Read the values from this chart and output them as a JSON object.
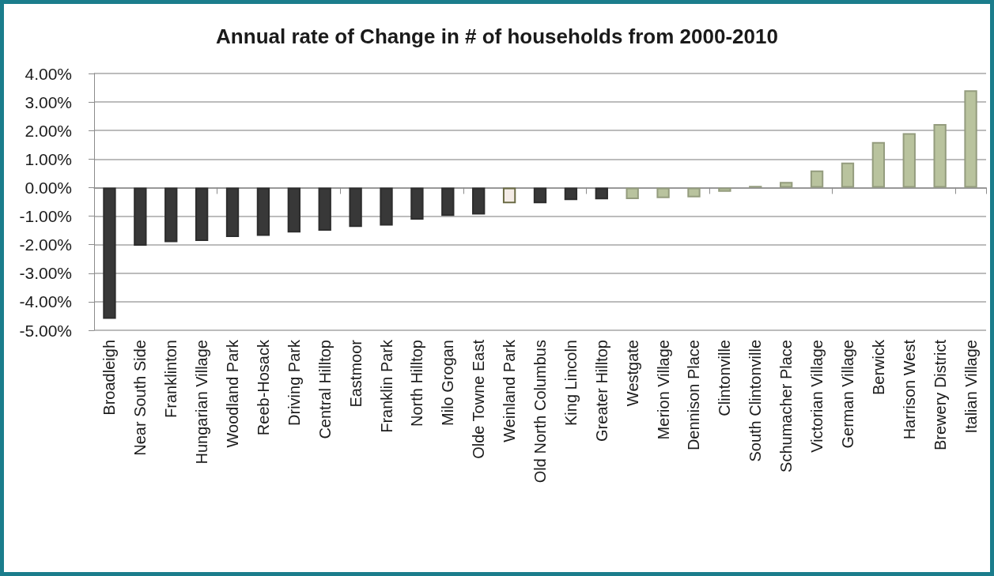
{
  "chart_data": {
    "type": "bar",
    "title": "Annual rate of Change in # of households from 2000-2010",
    "categories": [
      "Broadleigh",
      "Near South Side",
      "Franklinton",
      "Hungarian Village",
      "Woodland Park",
      "Reeb-Hosack",
      "Driving Park",
      "Central Hilltop",
      "Eastmoor",
      "Franklin Park",
      "North Hilltop",
      "Milo Grogan",
      "Olde Towne East",
      "Weinland Park",
      "Old North Columbus",
      "King Lincoln",
      "Greater Hilltop",
      "Westgate",
      "Merion Village",
      "Dennison Place",
      "Clintonville",
      "South Clintonville",
      "Schumacher Place",
      "Victorian Village",
      "German Village",
      "Berwick",
      "Harrison West",
      "Brewery District",
      "Italian Village"
    ],
    "values": [
      -4.6,
      -2.04,
      -1.91,
      -1.87,
      -1.73,
      -1.69,
      -1.57,
      -1.51,
      -1.38,
      -1.33,
      -1.12,
      -0.99,
      -0.94,
      -0.55,
      -0.55,
      -0.44,
      -0.41,
      -0.4,
      -0.37,
      -0.34,
      -0.15,
      0.06,
      0.2,
      0.6,
      0.88,
      1.6,
      1.91,
      2.23,
      3.41
    ],
    "colors": [
      "#383838",
      "#383838",
      "#383838",
      "#383838",
      "#383838",
      "#383838",
      "#383838",
      "#383838",
      "#383838",
      "#383838",
      "#383838",
      "#383838",
      "#383838",
      "#f4ece6",
      "#383838",
      "#383838",
      "#383838",
      "#b9c39e",
      "#b9c39e",
      "#b9c39e",
      "#b9c39e",
      "#b9c39e",
      "#b9c39e",
      "#b9c39e",
      "#b9c39e",
      "#b9c39e",
      "#b9c39e",
      "#b9c39e",
      "#b9c39e"
    ],
    "ylim": [
      -5,
      4
    ],
    "yticks": [
      {
        "value": -5,
        "label": "-5.00%"
      },
      {
        "value": -4,
        "label": "-4.00%"
      },
      {
        "value": -3,
        "label": "-3.00%"
      },
      {
        "value": -2,
        "label": "-2.00%"
      },
      {
        "value": -1,
        "label": "-1.00%"
      },
      {
        "value": 0,
        "label": "0.00%"
      },
      {
        "value": 1,
        "label": "1.00%"
      },
      {
        "value": 2,
        "label": "2.00%"
      },
      {
        "value": 3,
        "label": "3.00%"
      },
      {
        "value": 4,
        "label": "4.00%"
      }
    ],
    "grid": "y"
  }
}
